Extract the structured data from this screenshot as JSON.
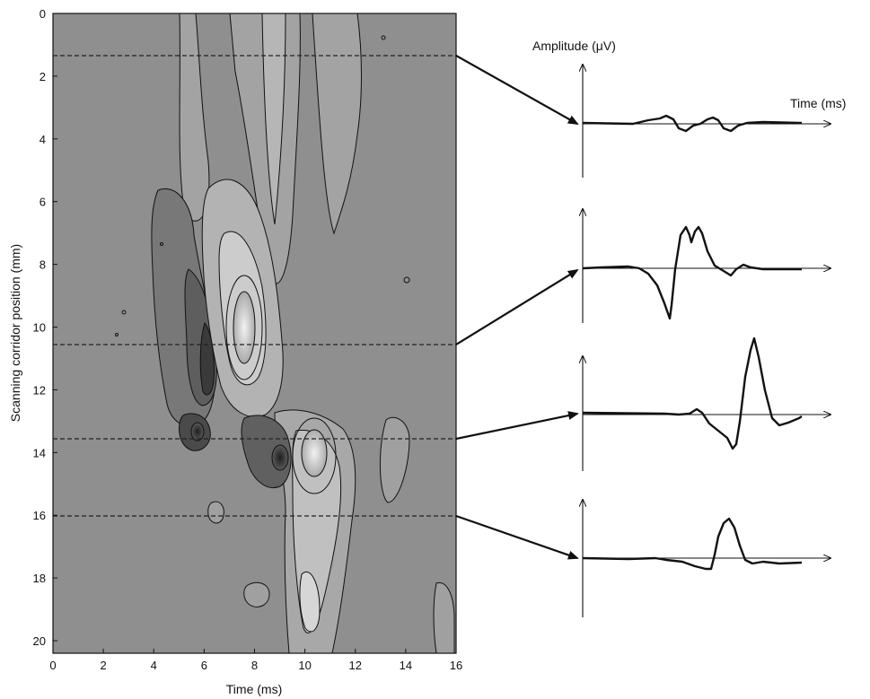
{
  "chart_data": [
    {
      "type": "heatmap",
      "xlabel": "Time (ms)",
      "ylabel": "Scanning corridor position (mm)",
      "xlim": [
        0,
        16
      ],
      "ylim": [
        20.4,
        0
      ],
      "x_ticks": [
        0,
        2,
        4,
        6,
        8,
        10,
        12,
        14,
        16
      ],
      "y_ticks": [
        0,
        2,
        4,
        6,
        8,
        10,
        12,
        14,
        16,
        18,
        20
      ],
      "colormap": "grayscale contour (dark = negative, light = positive amplitude)",
      "hotspots": [
        {
          "time_ms": 7.6,
          "position_mm": 10.2,
          "polarity": "positive"
        },
        {
          "time_ms": 10.4,
          "position_mm": 14.1,
          "polarity": "positive"
        },
        {
          "time_ms": 6.4,
          "position_mm": 11.5,
          "polarity": "negative"
        },
        {
          "time_ms": 5.8,
          "position_mm": 13.2,
          "polarity": "negative"
        },
        {
          "time_ms": 9.2,
          "position_mm": 14.0,
          "polarity": "negative"
        }
      ],
      "marked_positions_mm": [
        1.35,
        10.55,
        13.55,
        16.0
      ]
    },
    {
      "type": "line",
      "ylabel": "Amplitude (μV)",
      "xlabel": "Time (ms)",
      "grid": false,
      "series": [
        {
          "position_mm": 1.35,
          "x": [
            0,
            1,
            2,
            3,
            4,
            5,
            6,
            7,
            8,
            9,
            10,
            11,
            12,
            13,
            14,
            15,
            16
          ],
          "y": [
            0,
            0,
            0,
            0,
            0.03,
            0.1,
            0.05,
            -0.12,
            -0.06,
            0.1,
            -0.14,
            -0.04,
            0.02,
            0.02,
            0,
            0,
            0
          ]
        },
        {
          "position_mm": 10.55,
          "x": [
            0,
            1,
            2,
            3,
            4,
            5,
            6,
            7,
            8,
            9,
            10,
            11,
            12,
            13,
            14,
            15,
            16
          ],
          "y": [
            0,
            0,
            0.05,
            0,
            -0.3,
            -1.2,
            1.1,
            1.0,
            0.2,
            -0.08,
            0.05,
            -0.05,
            0,
            0,
            0,
            0,
            0
          ]
        },
        {
          "position_mm": 13.55,
          "x": [
            0,
            1,
            2,
            3,
            4,
            5,
            6,
            7,
            8,
            9,
            10,
            11,
            12,
            13,
            14,
            15,
            16
          ],
          "y": [
            0,
            0,
            0,
            0,
            -0.05,
            -0.1,
            0.1,
            -0.3,
            -1.0,
            1.9,
            -0.25,
            -0.3,
            -0.15,
            -0.05,
            0,
            0,
            0
          ]
        },
        {
          "position_mm": 16.0,
          "x": [
            0,
            1,
            2,
            3,
            4,
            5,
            6,
            7,
            8,
            9,
            10,
            11,
            12,
            13,
            14,
            15,
            16
          ],
          "y": [
            0,
            0,
            0,
            0,
            0,
            -0.02,
            -0.05,
            -0.15,
            -0.25,
            1.3,
            0.1,
            -0.15,
            -0.1,
            -0.05,
            -0.05,
            -0.03,
            0
          ]
        }
      ]
    }
  ]
}
